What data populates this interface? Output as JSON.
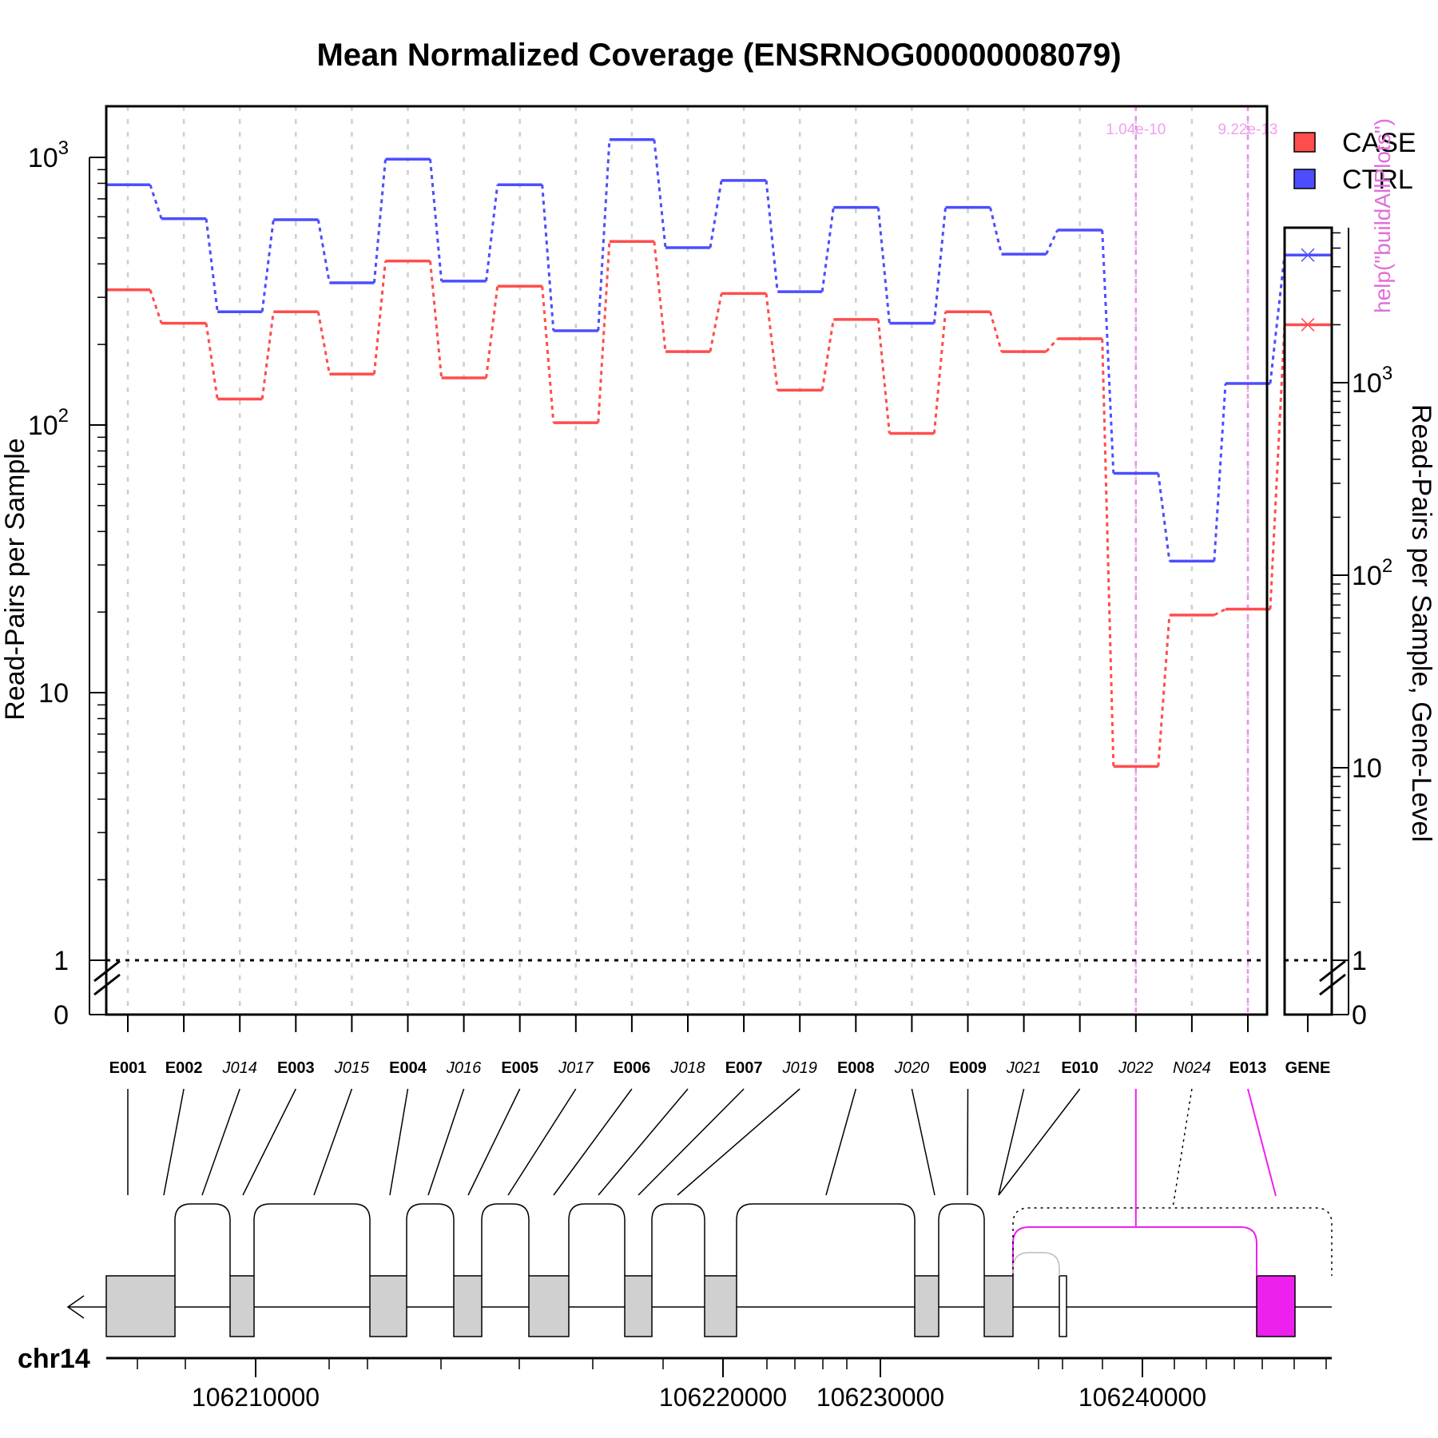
{
  "chart_data": {
    "type": "line",
    "title": "Mean Normalized Coverage (ENSRNOG00000008079)",
    "ylabel": "Read-Pairs per Sample",
    "ylabel_right": "Read-Pairs per Sample, Gene-Level",
    "yscale": "log",
    "y_ticks": [
      {
        "value": 0,
        "label": "0"
      },
      {
        "value": 1,
        "label": "1"
      },
      {
        "value": 10,
        "label": "10"
      },
      {
        "value": 100,
        "label": "10^2"
      },
      {
        "value": 1000,
        "label": "10^3"
      }
    ],
    "y_ticks_right": [
      {
        "value": 0,
        "label": "0"
      },
      {
        "value": 1,
        "label": "1"
      },
      {
        "value": 10,
        "label": "10"
      },
      {
        "value": 100,
        "label": "10^2"
      },
      {
        "value": 1000,
        "label": "10^3"
      }
    ],
    "categories": [
      "E001",
      "E002",
      "J014",
      "E003",
      "J015",
      "E004",
      "J016",
      "E005",
      "J017",
      "E006",
      "J018",
      "E007",
      "J019",
      "E008",
      "J020",
      "E009",
      "J021",
      "E010",
      "J022",
      "N024",
      "E013"
    ],
    "category_style": [
      "bold",
      "bold",
      "italic",
      "bold",
      "italic",
      "bold",
      "italic",
      "bold",
      "italic",
      "bold",
      "italic",
      "bold",
      "italic",
      "bold",
      "italic",
      "bold",
      "italic",
      "bold",
      "italic",
      "italic",
      "bold"
    ],
    "series": [
      {
        "name": "CASE",
        "color": "#ff4d4d",
        "values": [
          320,
          240,
          125,
          265,
          155,
          410,
          150,
          330,
          102,
          485,
          188,
          310,
          135,
          248,
          93,
          265,
          188,
          210,
          5.3,
          19.5,
          20.5
        ],
        "gene_value": 2000
      },
      {
        "name": "CTRL",
        "color": "#4d4dff",
        "values": [
          790,
          590,
          265,
          585,
          340,
          985,
          345,
          790,
          225,
          1165,
          460,
          820,
          315,
          650,
          240,
          650,
          435,
          535,
          66,
          31,
          143
        ],
        "gene_value": 4600
      }
    ],
    "gene_label": "GENE",
    "significance": [
      {
        "feature": "J022",
        "pvalue": "1.04e-10"
      },
      {
        "feature": "E013",
        "pvalue": "9.22e-13"
      }
    ],
    "overlay_text": "help(\"buildAllPlots\")",
    "legend": {
      "position": "top-right",
      "entries": [
        "CASE",
        "CTRL"
      ]
    },
    "gene_model": {
      "chromosome": "chr14",
      "strand": "-",
      "x_ticks": [
        "106210000",
        "106220000",
        "106230000",
        "106240000"
      ]
    }
  }
}
